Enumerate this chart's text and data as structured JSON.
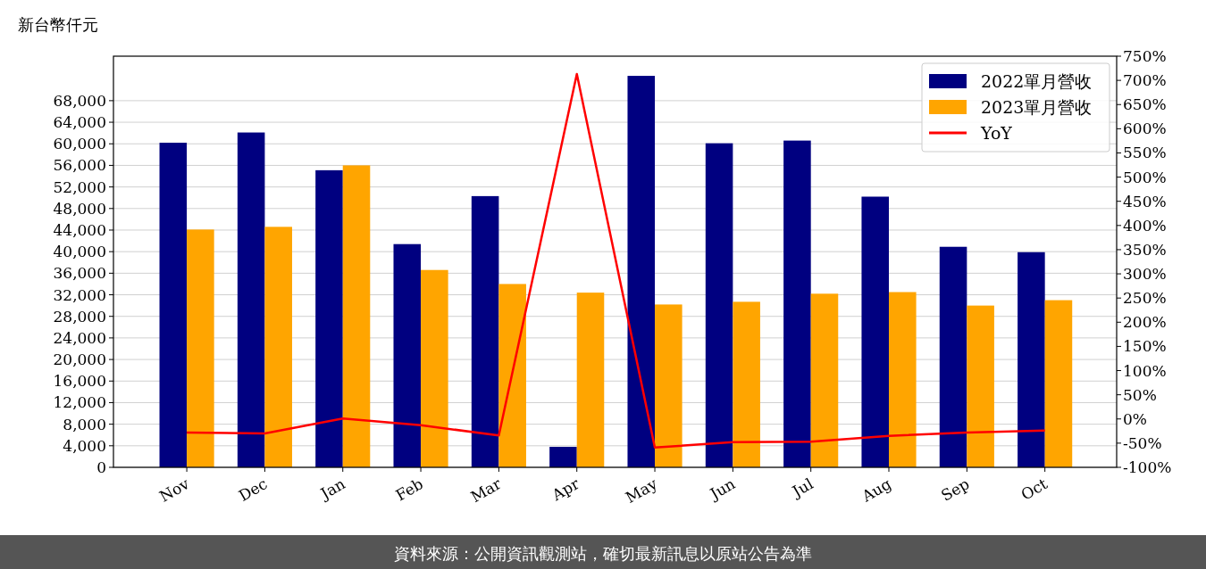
{
  "chart_data": {
    "type": "bar",
    "ylabel": "新台幣仟元",
    "categories": [
      "Nov",
      "Dec",
      "Jan",
      "Feb",
      "Mar",
      "Apr",
      "May",
      "Jun",
      "Jul",
      "Aug",
      "Sep",
      "Oct"
    ],
    "series": [
      {
        "name": "2022單月營收",
        "color": "#000080",
        "values": [
          60200,
          62100,
          55100,
          41400,
          50300,
          3800,
          72600,
          60100,
          60600,
          50200,
          40900,
          39900
        ]
      },
      {
        "name": "2023單月營收",
        "color": "#ffa500",
        "values": [
          44100,
          44600,
          56000,
          36600,
          34000,
          32400,
          30200,
          30700,
          32200,
          32500,
          30000,
          31000
        ]
      },
      {
        "name": "YoY",
        "color": "#ff0000",
        "type": "line",
        "axis": "y2",
        "values": [
          -28,
          -30,
          1,
          -13,
          -34,
          713,
          -59,
          -48,
          -47,
          -35,
          -28,
          -24
        ]
      }
    ],
    "ylim": [
      0,
      76250
    ],
    "yticks": [
      0,
      {
        "value": 4000,
        "label": "4,000"
      },
      {
        "value": 8000,
        "label": "8,000"
      },
      {
        "value": 12000,
        "label": "12,000"
      },
      {
        "value": 16000,
        "label": "16,000"
      },
      {
        "value": 20000,
        "label": "20,000"
      },
      {
        "value": 24000,
        "label": "24,000"
      },
      {
        "value": 28000,
        "label": "28,000"
      },
      {
        "value": 32000,
        "label": "32,000"
      },
      {
        "value": 36000,
        "label": "36,000"
      },
      {
        "value": 40000,
        "label": "40,000"
      },
      {
        "value": 44000,
        "label": "44,000"
      },
      {
        "value": 48000,
        "label": "48,000"
      },
      {
        "value": 52000,
        "label": "52,000"
      },
      {
        "value": 56000,
        "label": "56,000"
      },
      {
        "value": 60000,
        "label": "60,000"
      },
      {
        "value": 64000,
        "label": "64,000"
      },
      {
        "value": 68000,
        "label": "68,000"
      }
    ],
    "y2lim": [
      -100,
      750
    ],
    "y2ticks": [
      {
        "value": -100,
        "label": "-100%"
      },
      {
        "value": -50,
        "label": "-50%"
      },
      {
        "value": 0,
        "label": "0%"
      },
      {
        "value": 50,
        "label": "50%"
      },
      {
        "value": 100,
        "label": "100%"
      },
      {
        "value": 150,
        "label": "150%"
      },
      {
        "value": 200,
        "label": "200%"
      },
      {
        "value": 250,
        "label": "250%"
      },
      {
        "value": 300,
        "label": "300%"
      },
      {
        "value": 350,
        "label": "350%"
      },
      {
        "value": 400,
        "label": "400%"
      },
      {
        "value": 450,
        "label": "450%"
      },
      {
        "value": 500,
        "label": "500%"
      },
      {
        "value": 550,
        "label": "550%"
      },
      {
        "value": 600,
        "label": "600%"
      },
      {
        "value": 650,
        "label": "650%"
      },
      {
        "value": 700,
        "label": "700%"
      },
      {
        "value": 750,
        "label": "750%"
      }
    ],
    "grid": "y",
    "legend": "top right",
    "marker": "none",
    "line_style": "solid",
    "annotations": [
      "資料來源：公開資訊觀測站，確切最新訊息以原站公告為準"
    ]
  }
}
